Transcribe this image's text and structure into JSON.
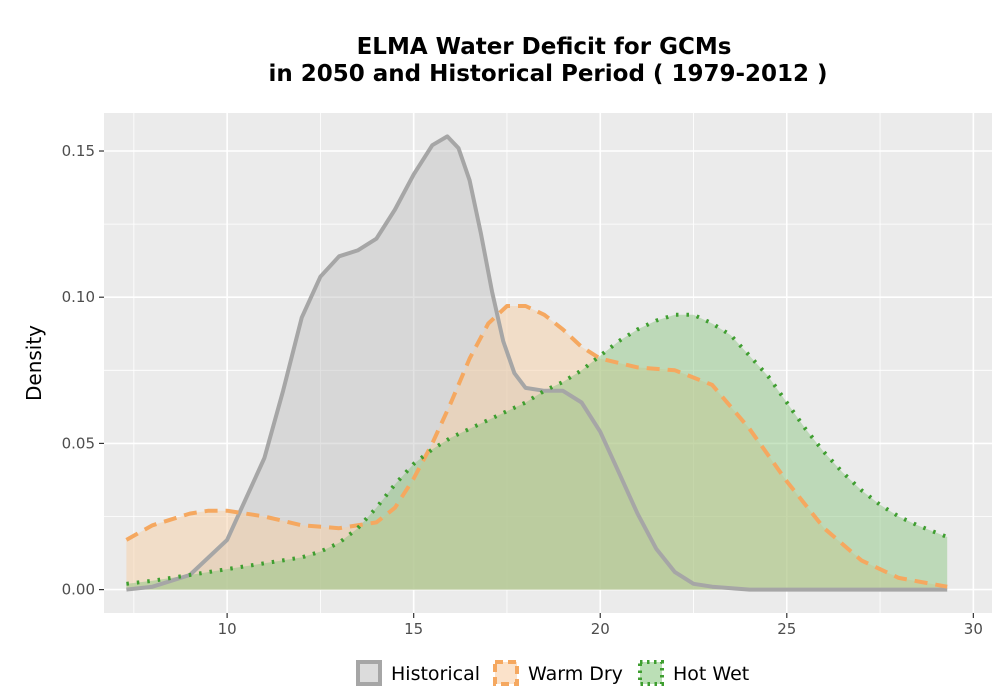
{
  "chart_data": {
    "type": "area",
    "title_lines": [
      "ELMA  Water Deficit for GCMs",
      "in 2050 and Historical Period ( 1979-2012 )"
    ],
    "xlabel": "",
    "ylabel": "Density",
    "xlim": [
      6.7,
      30.5
    ],
    "ylim": [
      -0.008,
      0.163
    ],
    "x_ticks": [
      10,
      15,
      20,
      25,
      30
    ],
    "x_tick_labels": [
      "10",
      "15",
      "20",
      "25",
      "30"
    ],
    "y_ticks": [
      0.0,
      0.05,
      0.1,
      0.15
    ],
    "y_tick_labels": [
      "0.00",
      "0.05",
      "0.10",
      "0.15"
    ],
    "grid": true,
    "legend_position": "bottom",
    "series": [
      {
        "name": "Historical",
        "color": "#a6a6a6",
        "fill": "#bfbfbf",
        "fill_opacity": 0.45,
        "line_style": "solid",
        "x": [
          7.3,
          8.0,
          9.0,
          10.0,
          11.0,
          11.5,
          12.0,
          12.5,
          13.0,
          13.5,
          14.0,
          14.5,
          15.0,
          15.5,
          15.9,
          16.2,
          16.5,
          16.8,
          17.1,
          17.4,
          17.7,
          18.0,
          18.5,
          19.0,
          19.5,
          20.0,
          20.5,
          21.0,
          21.5,
          22.0,
          22.5,
          23.0,
          24.0,
          25.0,
          27.0,
          29.3
        ],
        "y": [
          0.0,
          0.001,
          0.005,
          0.017,
          0.045,
          0.068,
          0.093,
          0.107,
          0.114,
          0.116,
          0.12,
          0.13,
          0.142,
          0.152,
          0.155,
          0.151,
          0.14,
          0.122,
          0.102,
          0.085,
          0.074,
          0.069,
          0.068,
          0.068,
          0.064,
          0.054,
          0.04,
          0.026,
          0.014,
          0.006,
          0.002,
          0.001,
          0.0,
          0.0,
          0.0,
          0.0
        ]
      },
      {
        "name": "Warm Dry",
        "color": "#f5a860",
        "fill": "#f8cfa6",
        "fill_opacity": 0.5,
        "line_style": "dashed",
        "x": [
          7.3,
          8.0,
          9.0,
          9.5,
          10.0,
          11.0,
          12.0,
          13.0,
          14.0,
          14.5,
          15.0,
          15.5,
          16.0,
          16.5,
          17.0,
          17.5,
          18.0,
          18.5,
          19.0,
          19.5,
          20.0,
          21.0,
          22.0,
          23.0,
          24.0,
          25.0,
          26.0,
          27.0,
          28.0,
          29.3
        ],
        "y": [
          0.017,
          0.022,
          0.026,
          0.027,
          0.027,
          0.025,
          0.022,
          0.021,
          0.023,
          0.028,
          0.038,
          0.05,
          0.064,
          0.079,
          0.091,
          0.097,
          0.097,
          0.094,
          0.089,
          0.083,
          0.079,
          0.076,
          0.075,
          0.07,
          0.055,
          0.037,
          0.021,
          0.01,
          0.004,
          0.001
        ]
      },
      {
        "name": "Hot Wet",
        "color": "#3f9e30",
        "fill": "#84c47a",
        "fill_opacity": 0.45,
        "line_style": "dotted",
        "x": [
          7.3,
          8.0,
          9.0,
          10.0,
          11.0,
          12.0,
          12.5,
          13.0,
          13.5,
          14.0,
          14.5,
          15.0,
          15.5,
          16.0,
          16.5,
          17.0,
          17.5,
          18.0,
          18.5,
          19.0,
          19.5,
          20.0,
          20.5,
          21.0,
          21.5,
          22.0,
          22.5,
          23.0,
          23.5,
          24.0,
          24.5,
          25.0,
          25.5,
          26.0,
          26.5,
          27.0,
          27.5,
          28.0,
          28.5,
          29.3
        ],
        "y": [
          0.002,
          0.003,
          0.005,
          0.007,
          0.009,
          0.011,
          0.013,
          0.016,
          0.021,
          0.028,
          0.036,
          0.043,
          0.048,
          0.052,
          0.055,
          0.058,
          0.061,
          0.064,
          0.068,
          0.071,
          0.075,
          0.08,
          0.085,
          0.089,
          0.092,
          0.094,
          0.094,
          0.091,
          0.087,
          0.08,
          0.073,
          0.064,
          0.055,
          0.047,
          0.04,
          0.034,
          0.029,
          0.025,
          0.022,
          0.018
        ]
      }
    ]
  }
}
